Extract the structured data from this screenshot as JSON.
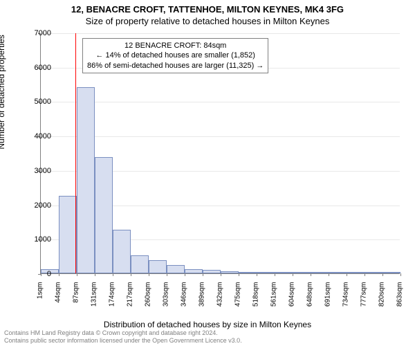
{
  "title_line1": "12, BENACRE CROFT, TATTENHOE, MILTON KEYNES, MK4 3FG",
  "title_line2": "Size of property relative to detached houses in Milton Keynes",
  "ylabel": "Number of detached properties",
  "xlabel": "Distribution of detached houses by size in Milton Keynes",
  "chart": {
    "type": "histogram",
    "ylim": [
      0,
      7000
    ],
    "ytick_step": 1000,
    "yticks": [
      0,
      1000,
      2000,
      3000,
      4000,
      5000,
      6000,
      7000
    ],
    "xticks": [
      "1sqm",
      "44sqm",
      "87sqm",
      "131sqm",
      "174sqm",
      "217sqm",
      "260sqm",
      "303sqm",
      "346sqm",
      "389sqm",
      "432sqm",
      "475sqm",
      "518sqm",
      "561sqm",
      "604sqm",
      "648sqm",
      "691sqm",
      "734sqm",
      "777sqm",
      "820sqm",
      "863sqm"
    ],
    "bar_fill": "#d7def0",
    "bar_stroke": "#7a8fc0",
    "background_color": "#ffffff",
    "grid_color": "#e8e8e8",
    "axis_color": "#808080",
    "bars": [
      {
        "i": 0,
        "value": 120
      },
      {
        "i": 1,
        "value": 2250
      },
      {
        "i": 2,
        "value": 5420
      },
      {
        "i": 3,
        "value": 3380
      },
      {
        "i": 4,
        "value": 1270
      },
      {
        "i": 5,
        "value": 530
      },
      {
        "i": 6,
        "value": 380
      },
      {
        "i": 7,
        "value": 250
      },
      {
        "i": 8,
        "value": 120
      },
      {
        "i": 9,
        "value": 110
      },
      {
        "i": 10,
        "value": 70
      },
      {
        "i": 11,
        "value": 35
      },
      {
        "i": 12,
        "value": 25
      },
      {
        "i": 13,
        "value": 15
      },
      {
        "i": 14,
        "value": 10
      },
      {
        "i": 15,
        "value": 10
      },
      {
        "i": 16,
        "value": 8
      },
      {
        "i": 17,
        "value": 8
      },
      {
        "i": 18,
        "value": 5
      },
      {
        "i": 19,
        "value": 5
      }
    ],
    "marker": {
      "color": "#ff0000",
      "position_bin": 1.93
    }
  },
  "annotation": {
    "line1": "12 BENACRE CROFT: 84sqm",
    "line2": "← 14% of detached houses are smaller (1,852)",
    "line3": "86% of semi-detached houses are larger (11,325) →"
  },
  "footer": {
    "line1": "Contains HM Land Registry data © Crown copyright and database right 2024.",
    "line2": "Contains public sector information licensed under the Open Government Licence v3.0."
  }
}
